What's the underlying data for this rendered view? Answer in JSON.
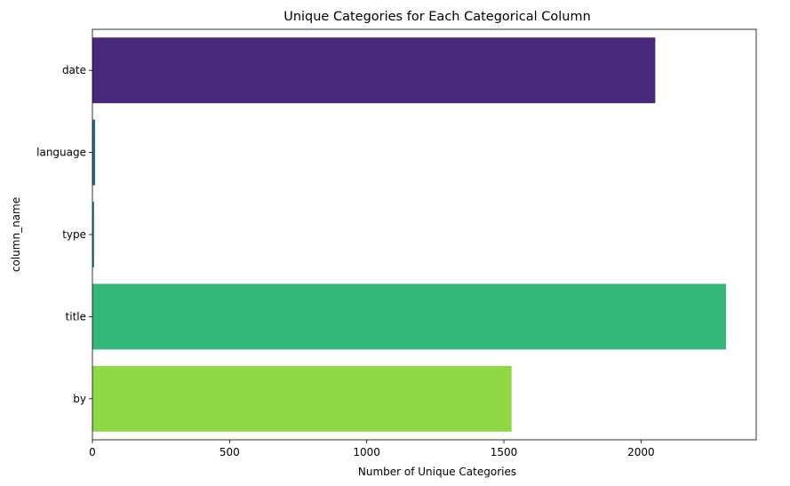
{
  "chart_data": {
    "type": "bar",
    "orientation": "horizontal",
    "title": "Unique Categories for Each Categorical Column",
    "xlabel": "Number of Unique Categories",
    "ylabel": "column_name",
    "categories": [
      "date",
      "language",
      "type",
      "title",
      "by"
    ],
    "values": [
      2052,
      10,
      6,
      2310,
      1528
    ],
    "colors": [
      "#482878",
      "#31688e",
      "#26828e",
      "#35b779",
      "#8fd744"
    ],
    "xlim": [
      0,
      2420
    ],
    "xticks": [
      0,
      500,
      1000,
      1500,
      2000
    ],
    "grid": false,
    "legend": "none"
  }
}
